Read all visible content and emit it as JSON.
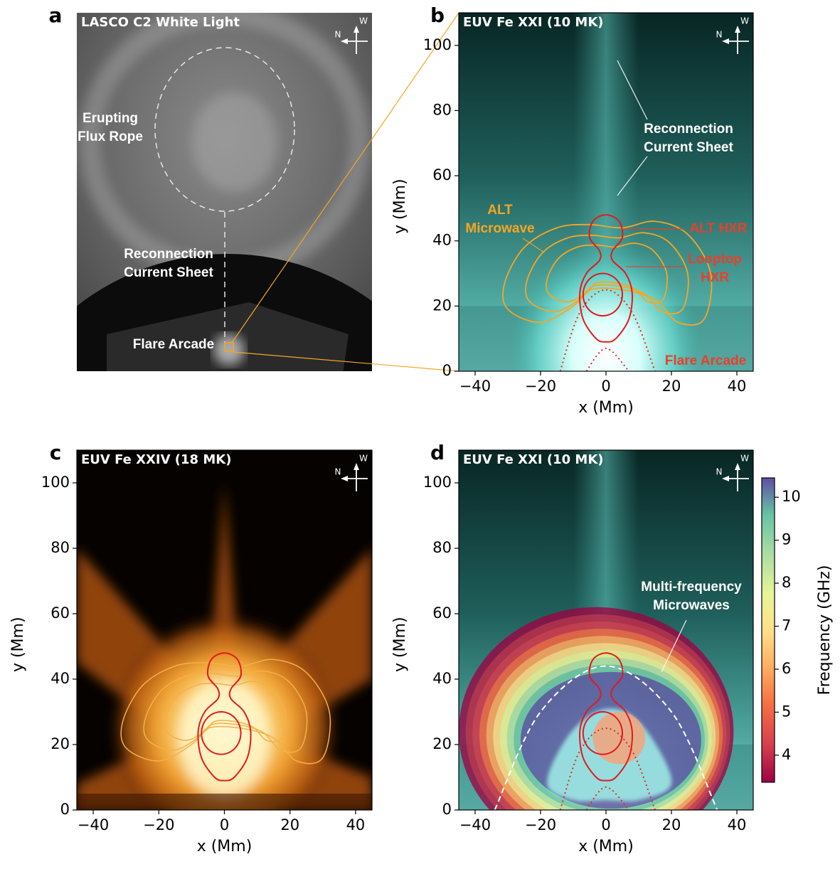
{
  "panels": [
    {
      "label": "a",
      "title": "LASCO C2 White Light",
      "compass": {
        "n": "N",
        "w": "W"
      },
      "annotations": [
        {
          "lines": [
            "Erupting",
            "Flux Rope"
          ],
          "color": "#ffffff"
        },
        {
          "lines": [
            "Reconnection",
            "Current Sheet"
          ],
          "color": "#ffffff"
        },
        {
          "lines": [
            "Flare Arcade"
          ],
          "color": "#ffffff"
        }
      ]
    },
    {
      "label": "b",
      "title": "EUV Fe XXI (10 MK)",
      "compass": {
        "n": "N",
        "w": "W"
      },
      "xlabel": "x (Mm)",
      "ylabel": "y (Mm)",
      "xlim": [
        -45,
        45
      ],
      "ylim": [
        0,
        110
      ],
      "xticks": [
        {
          "value": -40,
          "label": "−40"
        },
        {
          "value": -20,
          "label": "−20"
        },
        0,
        20,
        40
      ],
      "yticks": [
        0,
        20,
        40,
        60,
        80,
        100
      ],
      "annotations": [
        {
          "lines": [
            "Reconnection",
            "Current Sheet"
          ],
          "color": "#ffffff"
        },
        {
          "lines": [
            "ALT",
            "Microwave"
          ],
          "color": "#f5a623"
        },
        {
          "lines": [
            "ALT HXR"
          ],
          "color": "#e8402a"
        },
        {
          "lines": [
            "Looptop",
            "HXR"
          ],
          "color": "#e8402a"
        },
        {
          "lines": [
            "Flare Arcade"
          ],
          "color": "#e8402a"
        }
      ]
    },
    {
      "label": "c",
      "title": "EUV Fe XXIV (18 MK)",
      "compass": {
        "n": "N",
        "w": "W"
      },
      "xlabel": "x (Mm)",
      "ylabel": "y (Mm)",
      "xlim": [
        -45,
        45
      ],
      "ylim": [
        0,
        110
      ],
      "xticks": [
        {
          "value": -40,
          "label": "−40"
        },
        {
          "value": -20,
          "label": "−20"
        },
        0,
        20,
        40
      ],
      "yticks": [
        0,
        20,
        40,
        60,
        80,
        100
      ],
      "annotations": []
    },
    {
      "label": "d",
      "title": "EUV Fe XXI (10 MK)",
      "compass": {
        "n": "N",
        "w": "W"
      },
      "xlabel": "x (Mm)",
      "ylabel": "y (Mm)",
      "xlim": [
        -45,
        45
      ],
      "ylim": [
        0,
        110
      ],
      "xticks": [
        {
          "value": -40,
          "label": "−40"
        },
        {
          "value": -20,
          "label": "−20"
        },
        0,
        20,
        40
      ],
      "yticks": [
        0,
        20,
        40,
        60,
        80,
        100
      ],
      "annotations": [
        {
          "lines": [
            "Multi-frequency",
            "Microwaves"
          ],
          "color": "#ffffff"
        }
      ],
      "colorbar": {
        "label": "Frequency (GHz)",
        "clim": [
          3.37,
          10.45
        ],
        "ticks": [
          4,
          5,
          6,
          7,
          8,
          9,
          10
        ]
      }
    }
  ]
}
